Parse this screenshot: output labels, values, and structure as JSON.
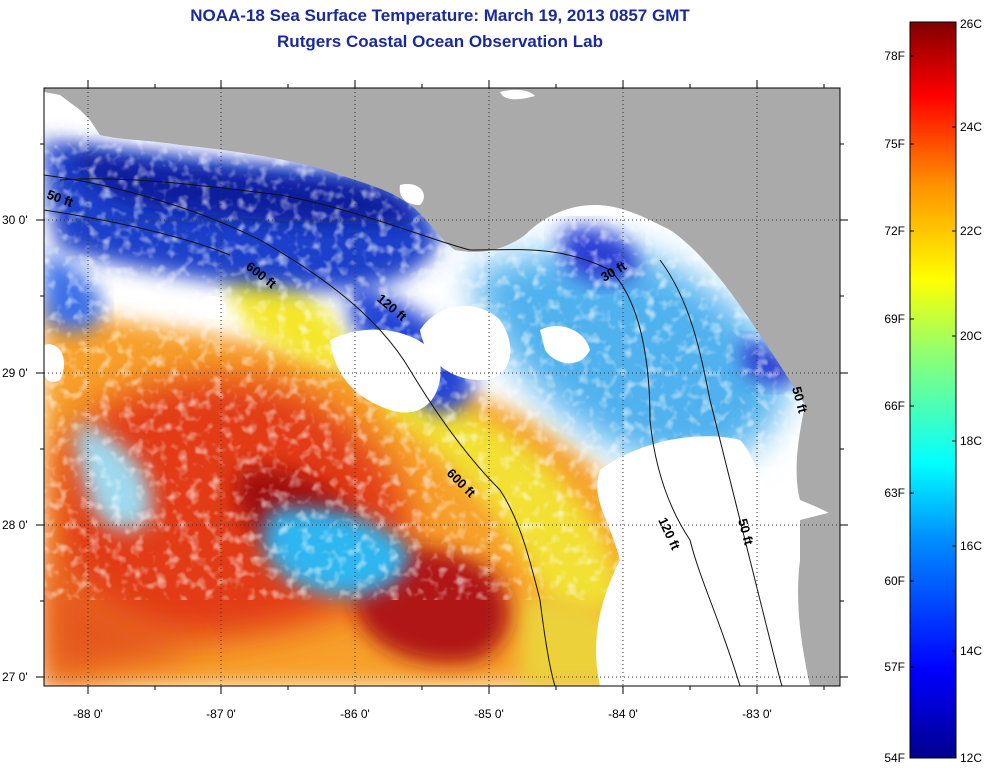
{
  "title": {
    "line1": "NOAA-18 Sea Surface Temperature:  March 19, 2013 0857 GMT",
    "line2": "Rutgers Coastal Ocean Observation Lab"
  },
  "axes": {
    "lon_labels": [
      "-88 0'",
      "-87 0'",
      "-86 0'",
      "-85 0'",
      "-84 0'",
      "-83 0'"
    ],
    "lat_labels": [
      "30 0'",
      "29 0'",
      "28 0'",
      "27 0'"
    ]
  },
  "contours": {
    "labels": [
      "50 ft",
      "600 ft",
      "120 ft",
      "600 ft",
      "120 ft",
      "50 ft",
      "30 ft",
      "50 ft"
    ]
  },
  "colorbar": {
    "fahrenheit": [
      "78F",
      "75F",
      "72F",
      "69F",
      "66F",
      "63F",
      "60F",
      "57F",
      "54F"
    ],
    "celsius": [
      "26C",
      "24C",
      "22C",
      "20C",
      "18C",
      "16C",
      "14C",
      "12C"
    ]
  },
  "colors": {
    "land": "#aaaaaa",
    "cloud": "#ffffff",
    "title": "#1a2a9c"
  }
}
